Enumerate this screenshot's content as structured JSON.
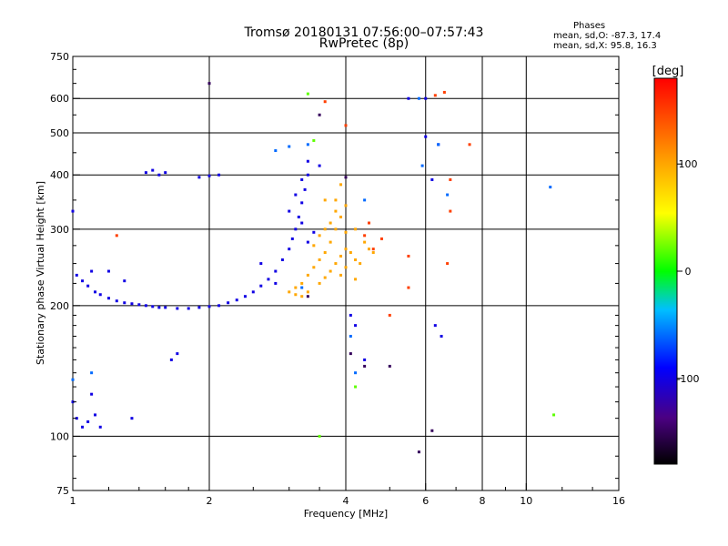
{
  "chart_data": {
    "type": "scatter",
    "title": "Tromsø 20180131 07:56:00–07:57:43",
    "subtitle": "RwPretec (8p)",
    "xlabel": "Frequency [MHz]",
    "ylabel": "Stationary phase Virtual Height [km]",
    "x_scale": "log",
    "y_scale": "log",
    "xlim": [
      1,
      16
    ],
    "ylim": [
      75,
      750
    ],
    "x_ticks": [
      1,
      2,
      4,
      6,
      8,
      10,
      16
    ],
    "x_tick_labels": [
      "1",
      "2",
      "4",
      "6",
      "8",
      "10",
      "16"
    ],
    "x_grid": [
      2,
      4,
      6,
      8,
      10
    ],
    "y_ticks": [
      75,
      100,
      200,
      300,
      400,
      500,
      600,
      750
    ],
    "y_tick_labels": [
      "75",
      "100",
      "200",
      "300",
      "400",
      "500",
      "600",
      "750"
    ],
    "y_grid": [
      100,
      200,
      300,
      400,
      500,
      600
    ],
    "grid": true,
    "phases": {
      "heading": "Phases",
      "o_line": "mean, sd,O: -87.3, 17.4",
      "x_line": "mean, sd,X:  95.8, 16.3"
    },
    "colorbar": {
      "label": "[deg]",
      "range": [
        -180,
        180
      ],
      "ticks": [
        -100,
        0,
        100
      ],
      "tick_labels": [
        "-100",
        "0",
        "100"
      ],
      "colormap": "rainbow"
    },
    "series": [
      {
        "phase_mean": -100,
        "points": [
          [
            1.02,
            235
          ],
          [
            1.05,
            228
          ],
          [
            1.08,
            222
          ],
          [
            1.12,
            215
          ],
          [
            1.15,
            212
          ],
          [
            1.2,
            208
          ],
          [
            1.25,
            205
          ],
          [
            1.3,
            203
          ],
          [
            1.35,
            202
          ],
          [
            1.4,
            201
          ],
          [
            1.45,
            200
          ],
          [
            1.5,
            199
          ],
          [
            1.55,
            198
          ],
          [
            1.6,
            198
          ],
          [
            1.7,
            197
          ],
          [
            1.8,
            197
          ],
          [
            1.9,
            198
          ],
          [
            2.0,
            199
          ],
          [
            2.1,
            200
          ],
          [
            2.2,
            203
          ],
          [
            2.3,
            206
          ],
          [
            2.4,
            210
          ],
          [
            2.5,
            215
          ],
          [
            2.6,
            222
          ],
          [
            2.7,
            230
          ],
          [
            2.8,
            240
          ],
          [
            2.9,
            255
          ],
          [
            3.0,
            270
          ],
          [
            3.05,
            285
          ],
          [
            3.1,
            300
          ],
          [
            3.15,
            320
          ],
          [
            3.2,
            345
          ],
          [
            3.25,
            370
          ],
          [
            3.3,
            400
          ],
          [
            3.0,
            330
          ],
          [
            3.1,
            360
          ],
          [
            3.2,
            390
          ],
          [
            3.3,
            430
          ],
          [
            1.5,
            410
          ],
          [
            1.55,
            400
          ],
          [
            1.6,
            405
          ],
          [
            1.45,
            405
          ],
          [
            1.9,
            395
          ],
          [
            2.0,
            398
          ],
          [
            2.1,
            400
          ],
          [
            1.0,
            330
          ],
          [
            1.02,
            110
          ],
          [
            1.05,
            105
          ],
          [
            1.08,
            108
          ],
          [
            1.12,
            112
          ],
          [
            1.15,
            105
          ],
          [
            1.35,
            110
          ],
          [
            1.65,
            150
          ],
          [
            1.7,
            155
          ],
          [
            4.1,
            190
          ],
          [
            4.2,
            180
          ],
          [
            4.4,
            150
          ],
          [
            6.3,
            180
          ],
          [
            6.5,
            170
          ],
          [
            6.4,
            470
          ],
          [
            6.0,
            600
          ],
          [
            6.2,
            390
          ],
          [
            3.3,
            280
          ],
          [
            3.4,
            295
          ],
          [
            3.2,
            310
          ],
          [
            2.6,
            250
          ],
          [
            2.8,
            225
          ],
          [
            1.1,
            240
          ],
          [
            1.2,
            240
          ],
          [
            1.3,
            228
          ],
          [
            1.0,
            120
          ],
          [
            1.1,
            125
          ],
          [
            5.5,
            600
          ],
          [
            6.0,
            490
          ],
          [
            3.5,
            420
          ]
        ]
      },
      {
        "phase_mean": 100,
        "points": [
          [
            3.0,
            215
          ],
          [
            3.1,
            220
          ],
          [
            3.2,
            225
          ],
          [
            3.3,
            235
          ],
          [
            3.4,
            245
          ],
          [
            3.5,
            255
          ],
          [
            3.6,
            265
          ],
          [
            3.7,
            280
          ],
          [
            3.8,
            300
          ],
          [
            3.9,
            320
          ],
          [
            4.0,
            340
          ],
          [
            3.5,
            225
          ],
          [
            3.6,
            232
          ],
          [
            3.7,
            240
          ],
          [
            3.8,
            250
          ],
          [
            3.9,
            260
          ],
          [
            4.0,
            270
          ],
          [
            4.1,
            265
          ],
          [
            4.2,
            255
          ],
          [
            4.3,
            250
          ],
          [
            3.7,
            310
          ],
          [
            3.8,
            350
          ],
          [
            3.9,
            380
          ],
          [
            3.6,
            300
          ],
          [
            3.5,
            290
          ],
          [
            3.4,
            275
          ],
          [
            4.0,
            245
          ],
          [
            4.2,
            230
          ],
          [
            3.9,
            235
          ],
          [
            3.6,
            350
          ],
          [
            4.4,
            280
          ],
          [
            4.5,
            270
          ],
          [
            4.6,
            265
          ],
          [
            4.2,
            300
          ],
          [
            4.0,
            295
          ],
          [
            3.8,
            330
          ],
          [
            3.3,
            215
          ],
          [
            3.2,
            210
          ],
          [
            3.1,
            212
          ]
        ]
      },
      {
        "phase_mean": 150,
        "points": [
          [
            1.25,
            290
          ],
          [
            4.0,
            520
          ],
          [
            6.3,
            610
          ],
          [
            6.6,
            620
          ],
          [
            7.5,
            470
          ],
          [
            6.8,
            390
          ],
          [
            6.7,
            250
          ],
          [
            5.0,
            190
          ],
          [
            5.5,
            260
          ],
          [
            4.8,
            285
          ],
          [
            4.6,
            270
          ],
          [
            4.4,
            290
          ],
          [
            4.5,
            310
          ],
          [
            3.6,
            590
          ],
          [
            5.5,
            220
          ],
          [
            6.8,
            330
          ]
        ]
      },
      {
        "phase_mean": 20,
        "points": [
          [
            3.3,
            615
          ],
          [
            11.5,
            112
          ],
          [
            3.5,
            100
          ],
          [
            3.4,
            480
          ],
          [
            4.2,
            130
          ]
        ]
      },
      {
        "phase_mean": -60,
        "points": [
          [
            2.8,
            455
          ],
          [
            3.3,
            470
          ],
          [
            4.1,
            170
          ],
          [
            4.2,
            140
          ],
          [
            1.0,
            135
          ],
          [
            1.1,
            140
          ],
          [
            5.8,
            600
          ],
          [
            5.9,
            420
          ],
          [
            6.4,
            470
          ],
          [
            6.7,
            360
          ],
          [
            11.3,
            375
          ],
          [
            4.4,
            350
          ],
          [
            3.0,
            465
          ],
          [
            3.2,
            220
          ]
        ]
      },
      {
        "phase_mean": -150,
        "points": [
          [
            4.0,
            395
          ],
          [
            4.4,
            145
          ],
          [
            5.0,
            145
          ],
          [
            5.8,
            92
          ],
          [
            6.2,
            103
          ],
          [
            4.1,
            155
          ],
          [
            2.0,
            650
          ],
          [
            3.3,
            210
          ],
          [
            3.5,
            550
          ]
        ]
      }
    ]
  }
}
